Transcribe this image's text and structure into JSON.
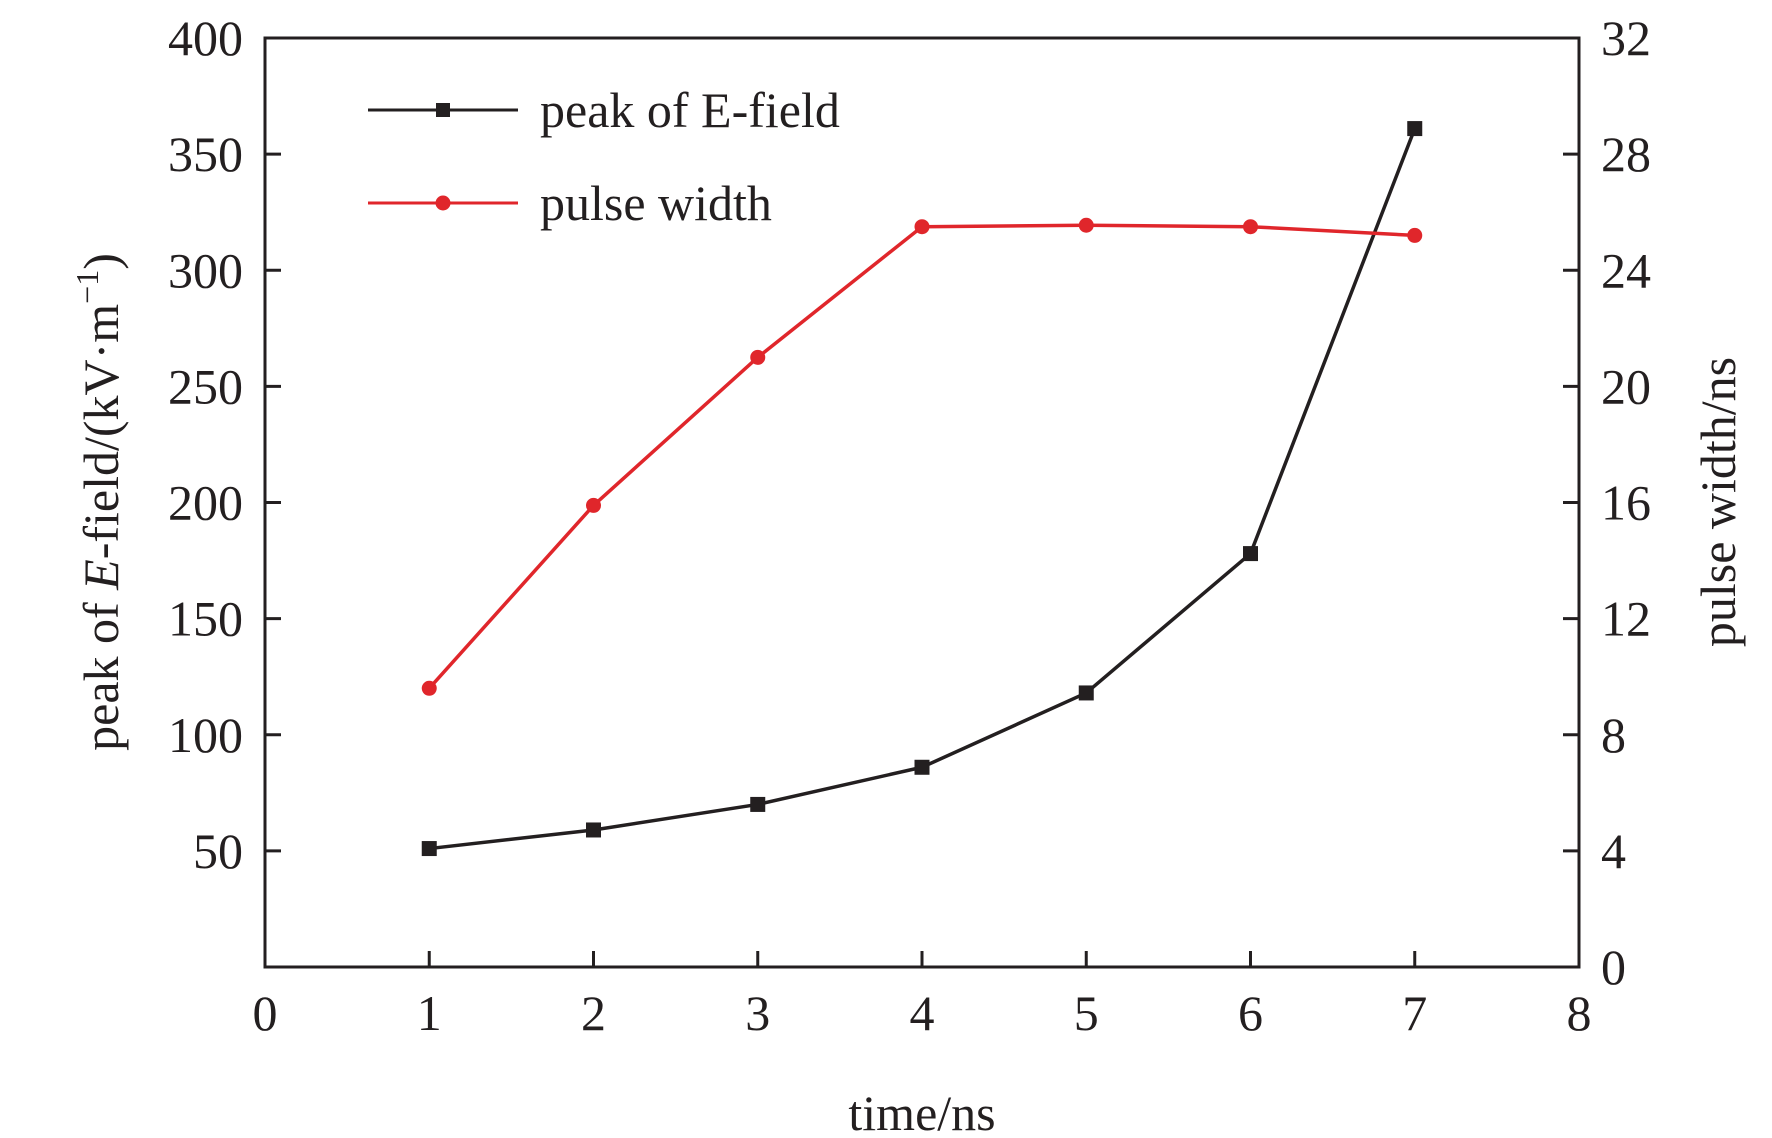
{
  "colors": {
    "axis": "#231f20",
    "series_e_field": "#231f20",
    "series_pulse_width": "#e0262b"
  },
  "chart_data": {
    "type": "line",
    "title": "",
    "xlabel": "time/ns",
    "ylabel_left_prefix": "peak of ",
    "ylabel_left_italic": "E",
    "ylabel_left_suffix": "-field/(kV·m",
    "ylabel_left_sup": "−1",
    "ylabel_left_close": ")",
    "ylabel_right": "pulse width/ns",
    "xlim": [
      0,
      8
    ],
    "ylim_left": [
      0,
      400
    ],
    "ylim_right": [
      0,
      32
    ],
    "x_ticks": [
      "0",
      "1",
      "2",
      "3",
      "4",
      "5",
      "6",
      "7",
      "8"
    ],
    "y_left_ticks": [
      "50",
      "100",
      "150",
      "200",
      "250",
      "300",
      "350",
      "400"
    ],
    "y_right_ticks": [
      "0",
      "4",
      "8",
      "12",
      "16",
      "20",
      "24",
      "28",
      "32"
    ],
    "legend_position": "top-left",
    "series": [
      {
        "name": "peak of E-field",
        "axis": "left",
        "marker": "square",
        "x": [
          1,
          2,
          3,
          4,
          5,
          6,
          7
        ],
        "values": [
          51,
          59,
          70,
          86,
          118,
          178,
          361
        ]
      },
      {
        "name": "pulse width",
        "axis": "right",
        "marker": "circle",
        "x": [
          1,
          2,
          3,
          4,
          5,
          6,
          7
        ],
        "values": [
          9.6,
          15.9,
          21.0,
          25.5,
          25.55,
          25.5,
          25.2
        ]
      }
    ]
  }
}
